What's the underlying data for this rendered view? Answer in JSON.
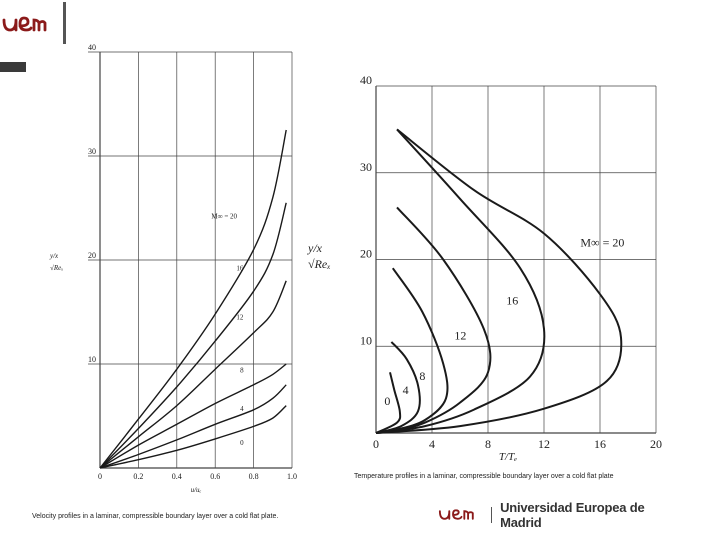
{
  "header": {
    "logo_text": "uem"
  },
  "footer": {
    "logo_text": "uem",
    "university_name": "Universidad Europea de Madrid"
  },
  "captions": {
    "left": "Velocity profiles in a laminar, compressible boundary layer over a cold flat plate.",
    "right": "Temperature profiles in a laminar, compressible boundary layer over a cold flat plate"
  },
  "colors": {
    "curve": "#1a1a1a",
    "grid": "#444444",
    "logo": "#8b1a1a"
  },
  "chart_data": [
    {
      "type": "line",
      "id": "velocity",
      "xlabel": "u/u_e",
      "ylabel": "y/x √Re_x",
      "xlim": [
        0,
        1.0
      ],
      "ylim": [
        0,
        40
      ],
      "xticks": [
        "0",
        "0.2",
        "0.4",
        "0.6",
        "0.8",
        "1.0"
      ],
      "yticks": [
        "10",
        "20",
        "30",
        "40"
      ],
      "grid": true,
      "series": [
        {
          "name": "0",
          "label": "0",
          "label_xy": [
            0.73,
            2.2
          ],
          "points": [
            [
              0,
              0
            ],
            [
              0.2,
              0.8
            ],
            [
              0.4,
              1.7
            ],
            [
              0.6,
              2.8
            ],
            [
              0.8,
              4.0
            ],
            [
              0.9,
              4.8
            ],
            [
              0.97,
              6.0
            ]
          ]
        },
        {
          "name": "4",
          "label": "4",
          "label_xy": [
            0.73,
            5.5
          ],
          "points": [
            [
              0,
              0
            ],
            [
              0.2,
              1.3
            ],
            [
              0.4,
              2.7
            ],
            [
              0.6,
              4.2
            ],
            [
              0.8,
              5.6
            ],
            [
              0.9,
              6.7
            ],
            [
              0.97,
              8.0
            ]
          ]
        },
        {
          "name": "8",
          "label": "8",
          "label_xy": [
            0.73,
            9.2
          ],
          "points": [
            [
              0,
              0
            ],
            [
              0.2,
              2.2
            ],
            [
              0.4,
              4.2
            ],
            [
              0.6,
              6.2
            ],
            [
              0.8,
              8.0
            ],
            [
              0.9,
              9.0
            ],
            [
              0.97,
              10.0
            ]
          ]
        },
        {
          "name": "12",
          "label": "12",
          "label_xy": [
            0.71,
            14.3
          ],
          "points": [
            [
              0,
              0
            ],
            [
              0.2,
              3.0
            ],
            [
              0.4,
              6.0
            ],
            [
              0.6,
              9.5
            ],
            [
              0.8,
              13.0
            ],
            [
              0.9,
              15.0
            ],
            [
              0.97,
              18.0
            ]
          ]
        },
        {
          "name": "16",
          "label": "16",
          "label_xy": [
            0.71,
            19.0
          ],
          "points": [
            [
              0,
              0
            ],
            [
              0.2,
              3.8
            ],
            [
              0.4,
              7.8
            ],
            [
              0.6,
              12.2
            ],
            [
              0.8,
              17.0
            ],
            [
              0.9,
              20.5
            ],
            [
              0.97,
              25.5
            ]
          ]
        },
        {
          "name": "M∞ = 20",
          "label": "M∞ = 20",
          "label_xy": [
            0.58,
            24.0
          ],
          "points": [
            [
              0,
              0
            ],
            [
              0.2,
              4.7
            ],
            [
              0.4,
              9.5
            ],
            [
              0.6,
              14.8
            ],
            [
              0.8,
              21.0
            ],
            [
              0.9,
              26.0
            ],
            [
              0.97,
              32.5
            ]
          ]
        }
      ]
    },
    {
      "type": "line",
      "id": "temperature",
      "xlabel": "T/T_e",
      "ylabel": "y/x √Re_x",
      "xlim": [
        0,
        20
      ],
      "ylim": [
        0,
        40
      ],
      "xticks": [
        "0",
        "4",
        "8",
        "12",
        "16",
        "20"
      ],
      "yticks": [
        "10",
        "20",
        "30",
        "40"
      ],
      "grid": true,
      "series": [
        {
          "name": "0",
          "label": "0",
          "label_xy": [
            0.6,
            3.2
          ],
          "points": [
            [
              1,
              7
            ],
            [
              1.3,
              5
            ],
            [
              1.7,
              2.5
            ],
            [
              1.5,
              1.2
            ],
            [
              0,
              0
            ]
          ]
        },
        {
          "name": "4",
          "label": "4",
          "label_xy": [
            1.9,
            4.5
          ],
          "points": [
            [
              1.1,
              10.5
            ],
            [
              2.2,
              8.5
            ],
            [
              3,
              5.5
            ],
            [
              3,
              2.5
            ],
            [
              1.8,
              0.8
            ],
            [
              0,
              0
            ]
          ]
        },
        {
          "name": "8",
          "label": "8",
          "label_xy": [
            3.1,
            6.1
          ],
          "points": [
            [
              1.2,
              19
            ],
            [
              3.3,
              14
            ],
            [
              4.8,
              8
            ],
            [
              5,
              4
            ],
            [
              3.5,
              1.5
            ],
            [
              1.5,
              0.4
            ],
            [
              0,
              0
            ]
          ]
        },
        {
          "name": "12",
          "label": "12",
          "label_xy": [
            5.6,
            10.8
          ],
          "points": [
            [
              1.5,
              26
            ],
            [
              4.8,
              20
            ],
            [
              7.7,
              12
            ],
            [
              8,
              7
            ],
            [
              6,
              3.5
            ],
            [
              3.5,
              1.2
            ],
            [
              1.5,
              0.3
            ],
            [
              0,
              0
            ]
          ]
        },
        {
          "name": "16",
          "label": "16",
          "label_xy": [
            9.3,
            14.8
          ],
          "points": [
            [
              1.5,
              35
            ],
            [
              6,
              27
            ],
            [
              10.3,
              19
            ],
            [
              12,
              12
            ],
            [
              11,
              6.5
            ],
            [
              7,
              2.7
            ],
            [
              3.5,
              0.8
            ],
            [
              0,
              0
            ]
          ]
        },
        {
          "name": "M∞ = 20",
          "label": "M∞ = 20",
          "label_xy": [
            14.6,
            21.5
          ],
          "points": [
            [
              1.5,
              35
            ],
            [
              7,
              28
            ],
            [
              12,
              23
            ],
            [
              16,
              16
            ],
            [
              17.5,
              11
            ],
            [
              16.5,
              6
            ],
            [
              12,
              2.8
            ],
            [
              6,
              0.8
            ],
            [
              0,
              0
            ]
          ]
        }
      ]
    }
  ]
}
